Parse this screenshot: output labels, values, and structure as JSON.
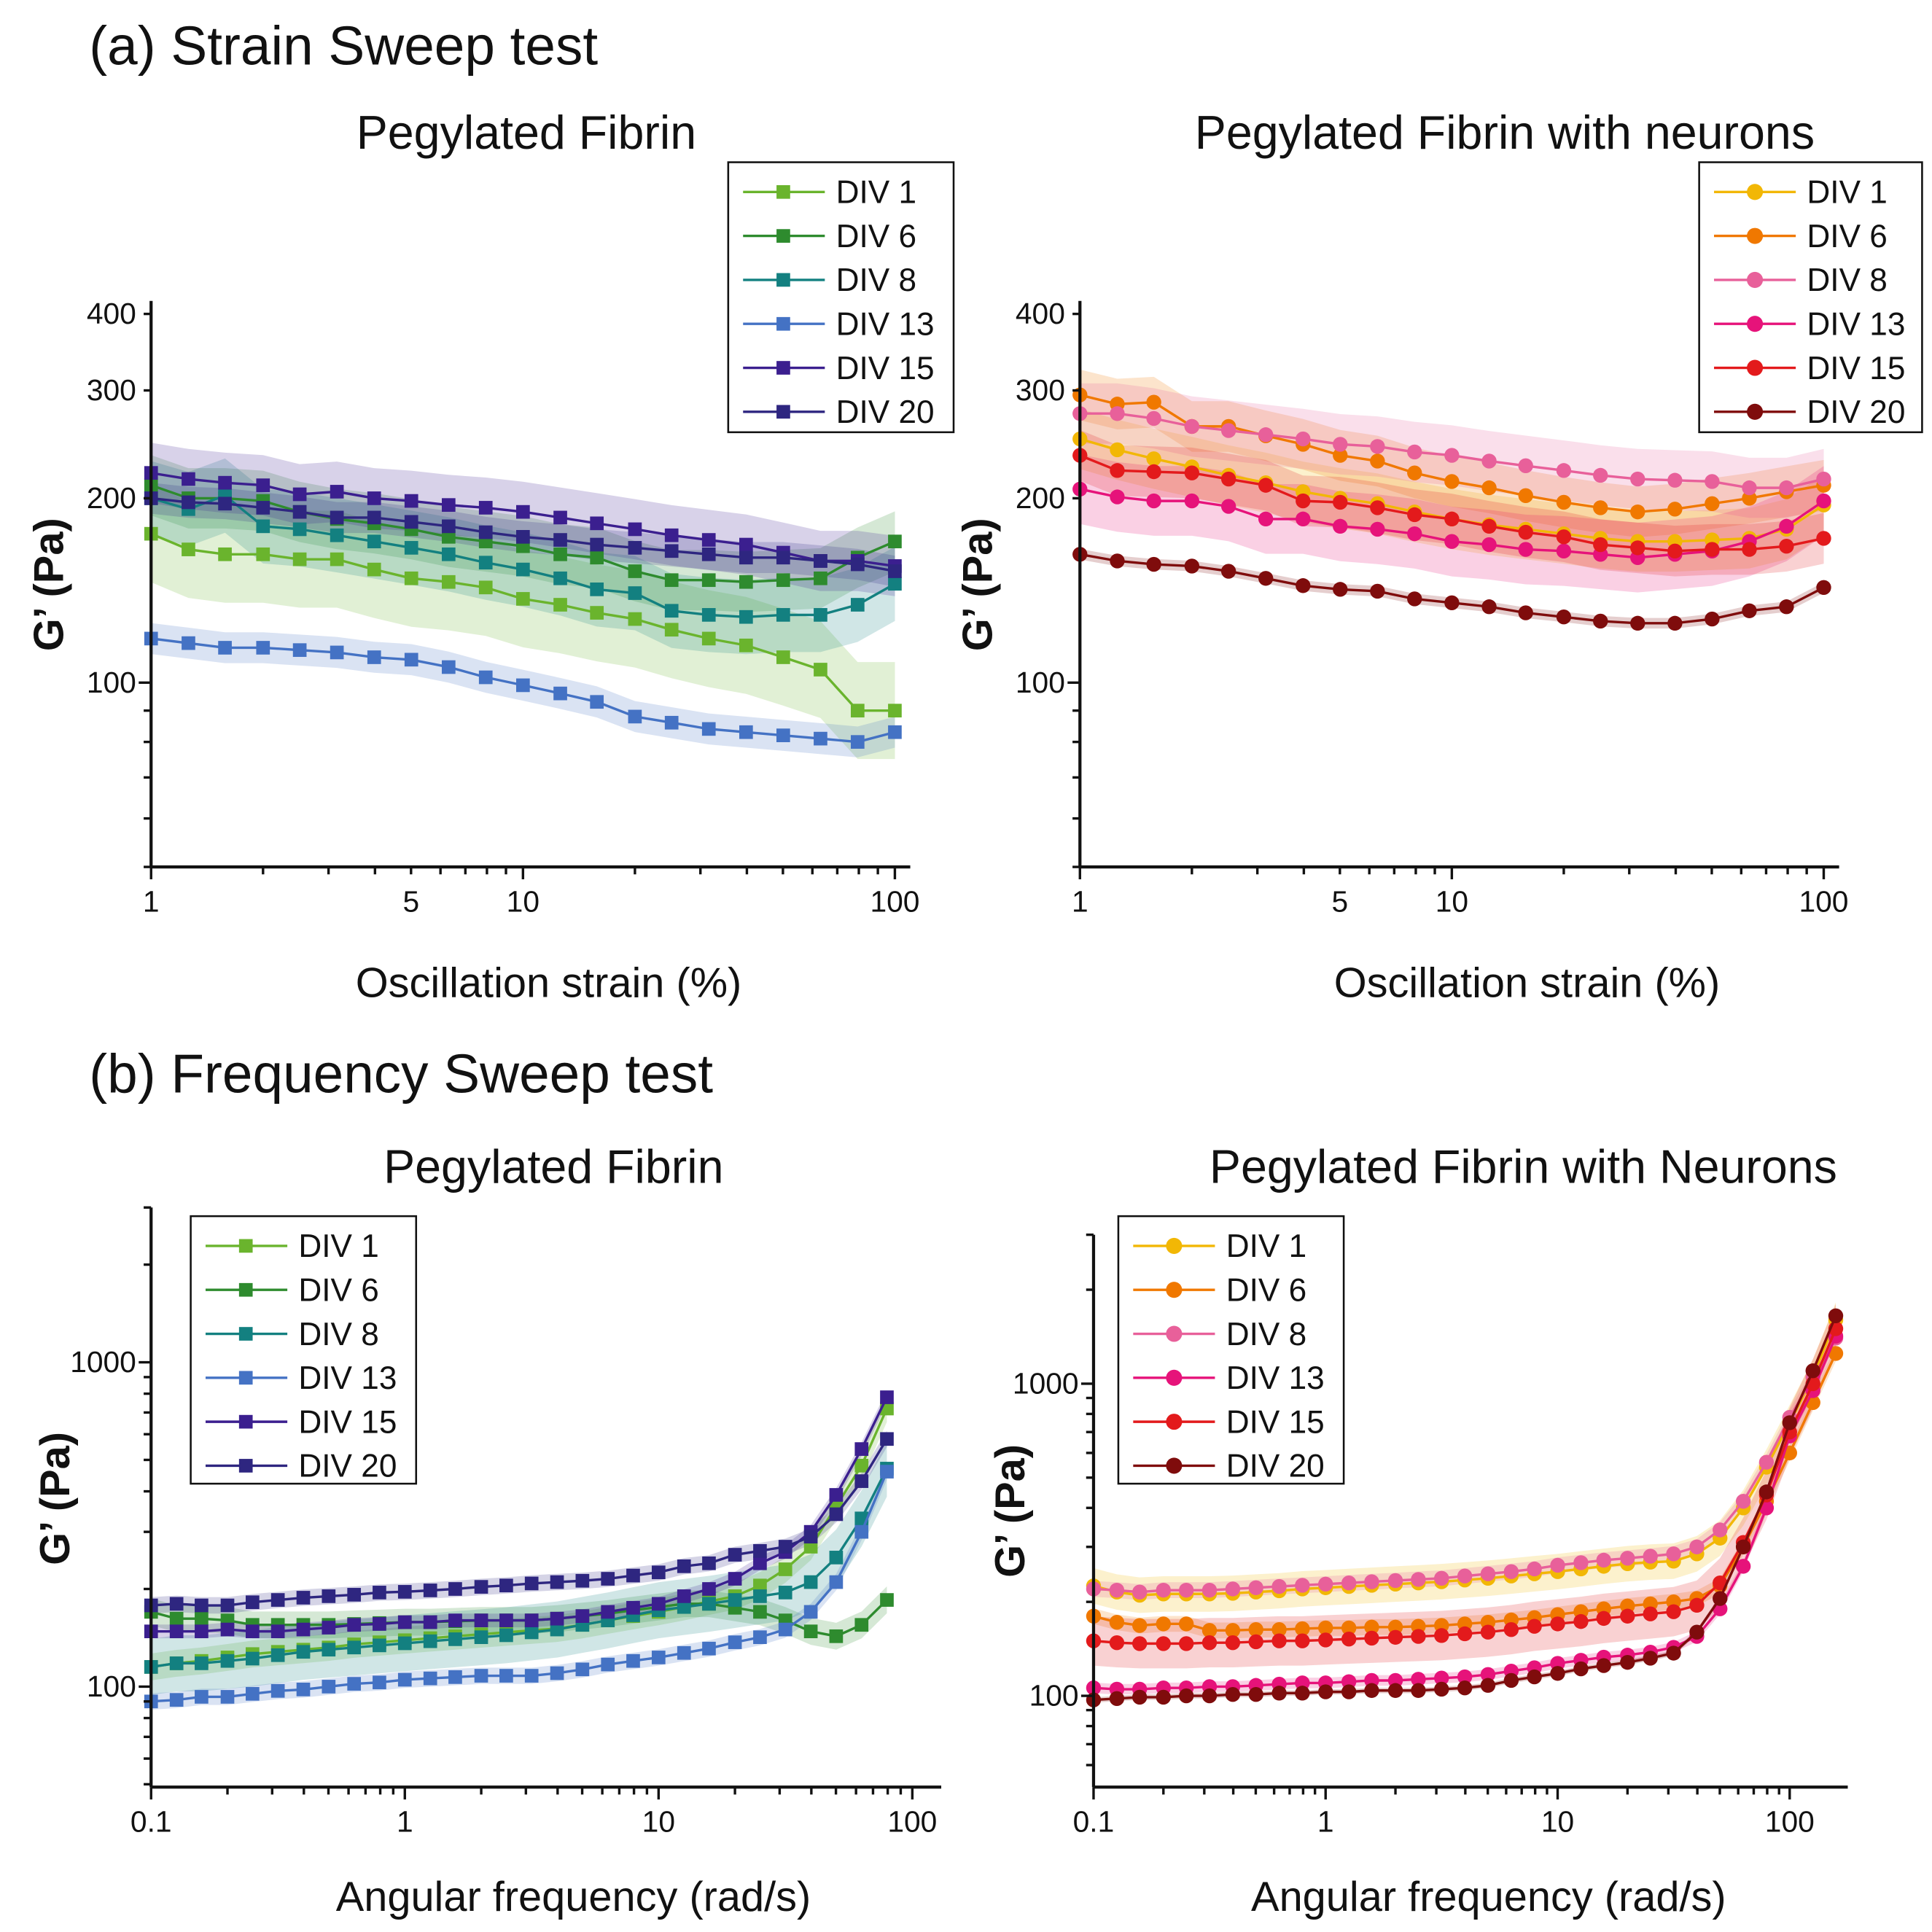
{
  "sections": [
    {
      "label": "(a) Strain Sweep test"
    },
    {
      "label": "(b) Frequency Sweep test"
    }
  ],
  "chart_data": [
    {
      "type": "line",
      "title": "Pegylated Fibrin",
      "xlabel": "Oscillation strain (%)",
      "ylabel": "G’ (Pa)",
      "xscale": "log",
      "yscale": "log",
      "xlim": [
        1,
        110
      ],
      "ylim": [
        50,
        420
      ],
      "xticks": [
        1,
        5,
        10,
        100
      ],
      "yticks": [
        100,
        200,
        300,
        400
      ],
      "marker": "square",
      "legend": "top-right",
      "x": [
        1,
        1.26,
        1.58,
        2,
        2.51,
        3.16,
        3.98,
        5.01,
        6.31,
        7.94,
        10,
        12.6,
        15.8,
        20,
        25.1,
        31.6,
        39.8,
        50.1,
        63.1,
        79.4,
        100
      ],
      "series": [
        {
          "name": "DIV 1",
          "color": "#6ab42d",
          "band": 0.2,
          "values": [
            175,
            165,
            162,
            162,
            159,
            159,
            153,
            148,
            146,
            143,
            137,
            134,
            130,
            127,
            122,
            118,
            115,
            110,
            105,
            90,
            90
          ]
        },
        {
          "name": "DIV 6",
          "color": "#2e8b2e",
          "band": 0.12,
          "values": [
            210,
            200,
            200,
            198,
            190,
            185,
            182,
            178,
            173,
            170,
            167,
            162,
            160,
            152,
            147,
            147,
            146,
            147,
            148,
            160,
            170
          ]
        },
        {
          "name": "DIV 8",
          "color": "#138080",
          "band": 0.15,
          "values": [
            200,
            192,
            202,
            180,
            178,
            174,
            170,
            166,
            162,
            157,
            153,
            148,
            142,
            140,
            131,
            129,
            128,
            129,
            129,
            134,
            145
          ]
        },
        {
          "name": "DIV 13",
          "color": "#4472c4",
          "band": 0.06,
          "values": [
            118,
            116,
            114,
            114,
            113,
            112,
            110,
            109,
            106,
            102,
            99,
            96,
            93,
            88,
            86,
            84,
            83,
            82,
            81,
            80,
            83
          ]
        },
        {
          "name": "DIV 15",
          "color": "#3b1f8f",
          "band": 0.12,
          "values": [
            220,
            215,
            212,
            210,
            203,
            205,
            200,
            198,
            195,
            193,
            190,
            186,
            182,
            178,
            174,
            171,
            168,
            163,
            158,
            158,
            155
          ]
        },
        {
          "name": "DIV 20",
          "color": "#2e2680",
          "band": 0.06,
          "values": [
            200,
            197,
            196,
            193,
            190,
            186,
            186,
            183,
            180,
            176,
            173,
            171,
            168,
            166,
            164,
            162,
            160,
            160,
            158,
            156,
            152
          ]
        }
      ]
    },
    {
      "type": "line",
      "title": "Pegylated Fibrin with neurons",
      "xlabel": "Oscillation strain (%)",
      "ylabel": "G’ (Pa)",
      "xscale": "log",
      "yscale": "log",
      "xlim": [
        1,
        110
      ],
      "ylim": [
        50,
        420
      ],
      "xticks": [
        1,
        5,
        10,
        100
      ],
      "yticks": [
        100,
        200,
        300,
        400
      ],
      "marker": "circle",
      "legend": "top-right",
      "x": [
        1,
        1.26,
        1.58,
        2,
        2.51,
        3.16,
        3.98,
        5.01,
        6.31,
        7.94,
        10,
        12.6,
        15.8,
        20,
        25.1,
        31.6,
        39.8,
        50.1,
        63.1,
        79.4,
        100
      ],
      "series": [
        {
          "name": "DIV 1",
          "color": "#f2b705",
          "band": 0.12,
          "values": [
            250,
            240,
            232,
            225,
            218,
            212,
            205,
            200,
            196,
            190,
            185,
            181,
            178,
            175,
            172,
            170,
            170,
            171,
            172,
            178,
            195
          ]
        },
        {
          "name": "DIV 6",
          "color": "#f07800",
          "band": 0.1,
          "values": [
            295,
            285,
            287,
            262,
            262,
            253,
            245,
            235,
            230,
            220,
            213,
            208,
            202,
            197,
            193,
            190,
            192,
            196,
            200,
            205,
            210
          ]
        },
        {
          "name": "DIV 8",
          "color": "#e8609a",
          "band": 0.12,
          "values": [
            275,
            275,
            270,
            262,
            258,
            254,
            250,
            245,
            243,
            238,
            235,
            230,
            226,
            222,
            218,
            215,
            214,
            213,
            208,
            208,
            215
          ]
        },
        {
          "name": "DIV 13",
          "color": "#e6137a",
          "band": 0.14,
          "values": [
            207,
            201,
            198,
            198,
            194,
            185,
            185,
            180,
            178,
            175,
            170,
            168,
            165,
            164,
            162,
            160,
            162,
            164,
            170,
            180,
            198
          ]
        },
        {
          "name": "DIV 15",
          "color": "#e31a1c",
          "band": 0.1,
          "values": [
            235,
            222,
            221,
            220,
            215,
            210,
            198,
            197,
            193,
            188,
            185,
            180,
            176,
            173,
            168,
            166,
            164,
            165,
            165,
            167,
            172
          ]
        },
        {
          "name": "DIV 20",
          "color": "#7f0c0c",
          "band": 0.02,
          "values": [
            162,
            158,
            156,
            155,
            152,
            148,
            144,
            142,
            141,
            137,
            135,
            133,
            130,
            128,
            126,
            125,
            125,
            127,
            131,
            133,
            143
          ]
        }
      ]
    },
    {
      "type": "line",
      "title": "Pegylated Fibrin",
      "xlabel": "Angular frequency (rad/s)",
      "ylabel": "G’ (Pa)",
      "xscale": "log",
      "yscale": "log",
      "xlim": [
        0.1,
        130
      ],
      "ylim": [
        49,
        3000
      ],
      "xticks": [
        0.1,
        1,
        10,
        100
      ],
      "yticks": [
        100,
        1000
      ],
      "marker": "square",
      "legend": "top-left",
      "x": [
        0.1,
        0.126,
        0.158,
        0.2,
        0.251,
        0.316,
        0.398,
        0.501,
        0.631,
        0.794,
        1,
        1.26,
        1.58,
        2,
        2.51,
        3.16,
        3.98,
        5.01,
        6.31,
        7.94,
        10,
        12.6,
        15.8,
        20,
        25.1,
        31.6,
        39.8,
        50.1,
        63.1,
        79.4
      ],
      "series": [
        {
          "name": "DIV 1",
          "color": "#6ab42d",
          "band": 0.1,
          "values": [
            115,
            118,
            120,
            123,
            126,
            128,
            130,
            132,
            135,
            137,
            139,
            141,
            143,
            145,
            147,
            149,
            151,
            155,
            160,
            165,
            170,
            176,
            183,
            190,
            205,
            230,
            270,
            360,
            480,
            720
          ]
        },
        {
          "name": "DIV 6",
          "color": "#2e8b2e",
          "band": 0.1,
          "values": [
            170,
            162,
            162,
            160,
            155,
            155,
            155,
            155,
            156,
            157,
            158,
            158,
            159,
            160,
            160,
            160,
            162,
            165,
            168,
            172,
            176,
            180,
            180,
            175,
            170,
            160,
            148,
            143,
            155,
            185
          ]
        },
        {
          "name": "DIV 8",
          "color": "#138080",
          "band": 0.22,
          "values": [
            115,
            118,
            118,
            120,
            122,
            125,
            128,
            130,
            132,
            134,
            136,
            138,
            140,
            142,
            144,
            147,
            150,
            155,
            160,
            166,
            172,
            176,
            180,
            185,
            190,
            195,
            210,
            250,
            330,
            470
          ]
        },
        {
          "name": "DIV 13",
          "color": "#4472c4",
          "band": 0.06,
          "values": [
            90,
            91,
            93,
            93,
            95,
            97,
            98,
            100,
            102,
            103,
            105,
            106,
            107,
            108,
            108,
            108,
            110,
            113,
            117,
            120,
            123,
            127,
            131,
            137,
            142,
            150,
            170,
            210,
            300,
            460
          ]
        },
        {
          "name": "DIV 15",
          "color": "#3b1f8f",
          "band": 0.05,
          "values": [
            148,
            148,
            148,
            150,
            148,
            148,
            150,
            152,
            155,
            156,
            158,
            158,
            160,
            160,
            160,
            160,
            162,
            165,
            170,
            175,
            180,
            190,
            200,
            215,
            240,
            260,
            300,
            390,
            540,
            780
          ]
        },
        {
          "name": "DIV 20",
          "color": "#2e2680",
          "band": 0.06,
          "values": [
            178,
            180,
            178,
            178,
            182,
            185,
            188,
            190,
            192,
            195,
            196,
            198,
            200,
            203,
            205,
            208,
            210,
            212,
            215,
            220,
            225,
            235,
            240,
            255,
            262,
            270,
            290,
            340,
            430,
            580
          ]
        }
      ]
    },
    {
      "type": "line",
      "title": "Pegylated Fibrin with Neurons",
      "xlabel": "Angular frequency (rad/s)",
      "ylabel": "G’ (Pa)",
      "xscale": "log",
      "yscale": "log",
      "xlim": [
        0.1,
        178
      ],
      "ylim": [
        51,
        3000
      ],
      "xticks": [
        0.1,
        1,
        10,
        100
      ],
      "yticks": [
        100,
        1000
      ],
      "marker": "circle",
      "legend": "top-left",
      "x": [
        0.1,
        0.126,
        0.158,
        0.2,
        0.251,
        0.316,
        0.398,
        0.501,
        0.631,
        0.794,
        1,
        1.26,
        1.58,
        2,
        2.51,
        3.16,
        3.98,
        5.01,
        6.31,
        7.94,
        10,
        12.6,
        15.8,
        20,
        25.1,
        31.6,
        39.8,
        50.1,
        63.1,
        79.4,
        100,
        126,
        158
      ],
      "series": [
        {
          "name": "DIV 1",
          "color": "#f2b705",
          "band": 0.14,
          "values": [
            225,
            215,
            210,
            212,
            212,
            212,
            213,
            215,
            217,
            220,
            222,
            224,
            226,
            228,
            230,
            232,
            235,
            238,
            242,
            246,
            250,
            255,
            260,
            265,
            268,
            270,
            285,
            320,
            400,
            540,
            750,
            1050,
            1600
          ]
        },
        {
          "name": "DIV 6",
          "color": "#f07800",
          "band": 0.06,
          "values": [
            180,
            172,
            168,
            170,
            170,
            162,
            162,
            163,
            163,
            164,
            165,
            165,
            166,
            166,
            167,
            168,
            170,
            172,
            175,
            178,
            182,
            186,
            190,
            194,
            197,
            200,
            205,
            225,
            300,
            420,
            600,
            870,
            1250
          ]
        },
        {
          "name": "DIV 8",
          "color": "#e8609a",
          "band": 0.06,
          "values": [
            220,
            218,
            215,
            218,
            218,
            218,
            220,
            222,
            224,
            226,
            228,
            230,
            232,
            234,
            236,
            238,
            242,
            246,
            250,
            255,
            262,
            267,
            272,
            276,
            280,
            285,
            300,
            340,
            420,
            560,
            780,
            1050,
            1400
          ]
        },
        {
          "name": "DIV 13",
          "color": "#e6137a",
          "band": 0.04,
          "values": [
            106,
            105,
            105,
            106,
            106,
            107,
            107,
            108,
            109,
            110,
            110,
            111,
            112,
            112,
            113,
            114,
            115,
            117,
            120,
            123,
            127,
            130,
            133,
            135,
            138,
            143,
            155,
            190,
            260,
            400,
            680,
            950,
            1420
          ]
        },
        {
          "name": "DIV 15",
          "color": "#e31a1c",
          "band": 0.2,
          "values": [
            150,
            148,
            147,
            147,
            147,
            148,
            148,
            149,
            150,
            150,
            151,
            152,
            153,
            154,
            155,
            156,
            158,
            160,
            163,
            167,
            170,
            173,
            177,
            180,
            183,
            186,
            195,
            230,
            310,
            440,
            700,
            1000,
            1500
          ]
        },
        {
          "name": "DIV 20",
          "color": "#7f0c0c",
          "band": 0.02,
          "values": [
            97,
            98,
            99,
            99,
            100,
            100,
            101,
            101,
            102,
            102,
            103,
            103,
            104,
            104,
            104,
            105,
            106,
            108,
            112,
            115,
            118,
            122,
            125,
            128,
            132,
            137,
            160,
            205,
            300,
            450,
            750,
            1100,
            1650
          ]
        }
      ]
    }
  ]
}
